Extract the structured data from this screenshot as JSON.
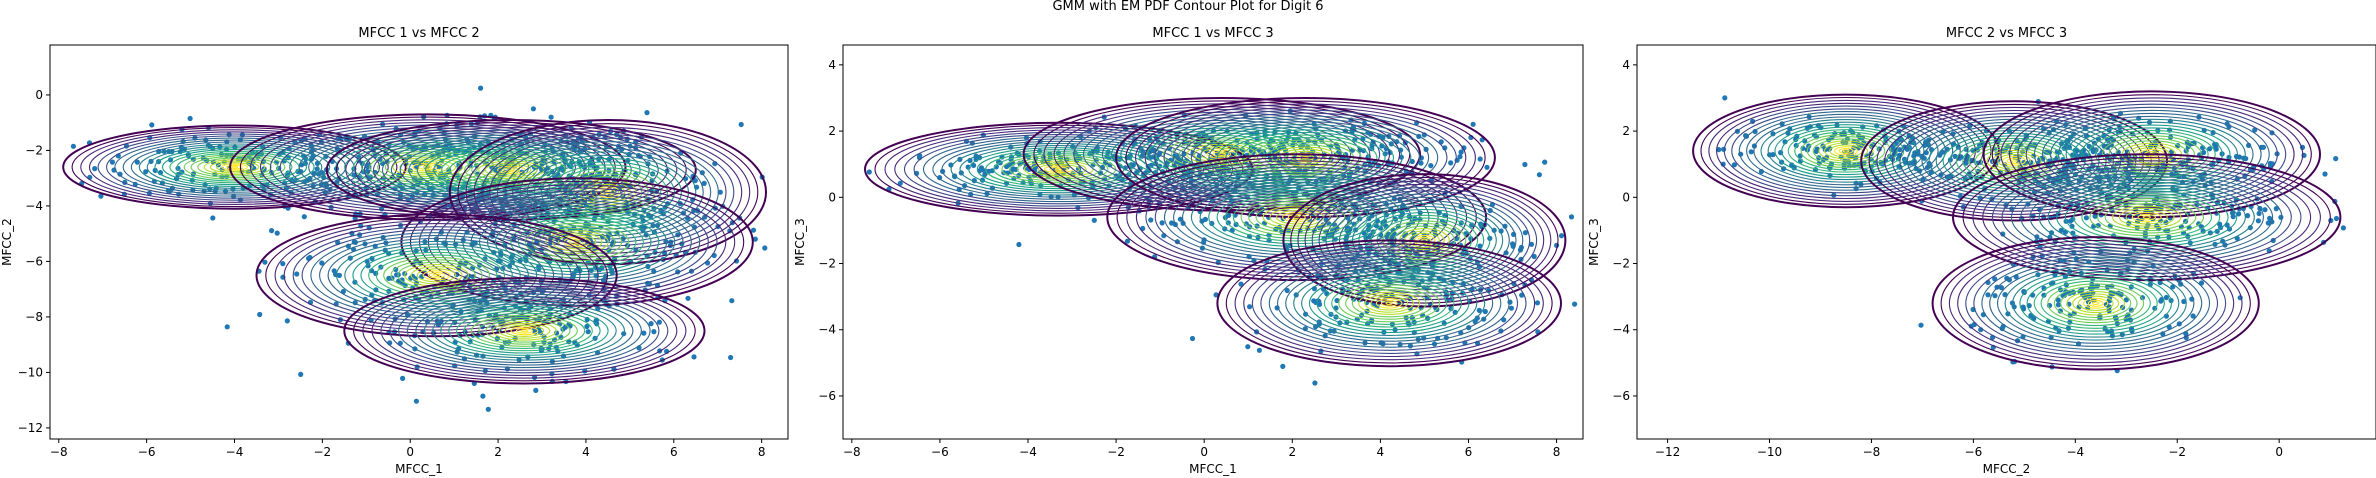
{
  "figure": {
    "title": "GMM with EM PDF Contour Plot for Digit 6"
  },
  "colors": {
    "points": "#1f77b4",
    "viridis": [
      "#440154",
      "#482878",
      "#3e4989",
      "#31688e",
      "#26828e",
      "#1f9e89",
      "#35b779",
      "#6ece58",
      "#b5de2b",
      "#fde725"
    ]
  },
  "chart_data": [
    {
      "type": "scatter",
      "title": "MFCC 1 vs MFCC 2",
      "xlabel": "MFCC_1",
      "ylabel": "MFCC_2",
      "xlim": [
        -8.2,
        8.6
      ],
      "ylim": [
        -12.4,
        1.8
      ],
      "xticks": [
        -8,
        -6,
        -4,
        -2,
        0,
        2,
        4,
        6,
        8
      ],
      "yticks": [
        0,
        -2,
        -4,
        -6,
        -8,
        -10,
        -12
      ],
      "overlay": "gmm-pdf-contours",
      "clusters": [
        {
          "center": [
            -4.0,
            -2.6
          ],
          "spread": [
            1.6,
            0.7
          ],
          "n": 160
        },
        {
          "center": [
            0.4,
            -2.6
          ],
          "spread": [
            1.6,
            0.8
          ],
          "n": 170
        },
        {
          "center": [
            2.3,
            -2.7
          ],
          "spread": [
            1.6,
            0.9
          ],
          "n": 160
        },
        {
          "center": [
            4.5,
            -3.5
          ],
          "spread": [
            1.5,
            1.2
          ],
          "n": 150
        },
        {
          "center": [
            3.8,
            -5.3
          ],
          "spread": [
            1.7,
            1.1
          ],
          "n": 150
        },
        {
          "center": [
            0.6,
            -6.5
          ],
          "spread": [
            1.8,
            1.1
          ],
          "n": 150
        },
        {
          "center": [
            2.6,
            -8.5
          ],
          "spread": [
            1.8,
            0.9
          ],
          "n": 150
        }
      ],
      "contours": [
        {
          "center": [
            -4.0,
            -2.6
          ],
          "radii": [
            3.9,
            1.5
          ]
        },
        {
          "center": [
            0.4,
            -2.6
          ],
          "radii": [
            4.5,
            1.9
          ]
        },
        {
          "center": [
            2.3,
            -2.7
          ],
          "radii": [
            4.2,
            1.8
          ]
        },
        {
          "center": [
            4.5,
            -3.5
          ],
          "radii": [
            3.6,
            2.6
          ]
        },
        {
          "center": [
            3.8,
            -5.3
          ],
          "radii": [
            4.0,
            2.3
          ]
        },
        {
          "center": [
            0.6,
            -6.5
          ],
          "radii": [
            4.1,
            2.2
          ]
        },
        {
          "center": [
            2.6,
            -8.5
          ],
          "radii": [
            4.1,
            1.9
          ]
        }
      ]
    },
    {
      "type": "scatter",
      "title": "MFCC 1 vs MFCC 3",
      "xlabel": "MFCC_1",
      "ylabel": "MFCC_3",
      "xlim": [
        -8.2,
        8.6
      ],
      "ylim": [
        -7.3,
        4.6
      ],
      "xticks": [
        -8,
        -6,
        -4,
        -2,
        0,
        2,
        4,
        6,
        8
      ],
      "yticks": [
        4,
        2,
        0,
        -2,
        -4,
        -6
      ],
      "overlay": "gmm-pdf-contours",
      "clusters": [
        {
          "center": [
            -3.3,
            0.85
          ],
          "spread": [
            1.8,
            0.35
          ],
          "n": 180
        },
        {
          "center": [
            0.4,
            1.3
          ],
          "spread": [
            1.8,
            0.45
          ],
          "n": 180
        },
        {
          "center": [
            2.3,
            1.2
          ],
          "spread": [
            1.9,
            0.5
          ],
          "n": 150
        },
        {
          "center": [
            2.1,
            -0.6
          ],
          "spread": [
            1.9,
            0.55
          ],
          "n": 160
        },
        {
          "center": [
            5.0,
            -1.3
          ],
          "spread": [
            1.4,
            0.7
          ],
          "n": 140
        },
        {
          "center": [
            4.2,
            -3.2
          ],
          "spread": [
            1.6,
            0.8
          ],
          "n": 160
        }
      ],
      "contours": [
        {
          "center": [
            -3.3,
            0.85
          ],
          "radii": [
            4.4,
            1.4
          ]
        },
        {
          "center": [
            0.4,
            1.3
          ],
          "radii": [
            4.5,
            1.7
          ]
        },
        {
          "center": [
            2.3,
            1.2
          ],
          "radii": [
            4.3,
            1.8
          ]
        },
        {
          "center": [
            2.1,
            -0.6
          ],
          "radii": [
            4.3,
            1.9
          ]
        },
        {
          "center": [
            5.0,
            -1.3
          ],
          "radii": [
            3.2,
            2.0
          ]
        },
        {
          "center": [
            4.2,
            -3.2
          ],
          "radii": [
            3.9,
            1.9
          ]
        }
      ]
    },
    {
      "type": "scatter",
      "title": "MFCC 2 vs MFCC 3",
      "xlabel": "MFCC_2",
      "ylabel": "MFCC_3",
      "xlim": [
        -12.6,
        1.9
      ],
      "ylim": [
        -7.3,
        4.6
      ],
      "xticks": [
        -12,
        -10,
        -8,
        -6,
        -4,
        -2,
        0
      ],
      "yticks": [
        4,
        2,
        0,
        -2,
        -4,
        -6
      ],
      "overlay": "gmm-pdf-contours",
      "clusters": [
        {
          "center": [
            -8.5,
            1.4
          ],
          "spread": [
            1.2,
            0.45
          ],
          "n": 170
        },
        {
          "center": [
            -5.2,
            1.1
          ],
          "spread": [
            1.3,
            0.5
          ],
          "n": 150
        },
        {
          "center": [
            -2.5,
            1.3
          ],
          "spread": [
            1.4,
            0.5
          ],
          "n": 180
        },
        {
          "center": [
            -2.6,
            -0.6
          ],
          "spread": [
            1.5,
            0.55
          ],
          "n": 160
        },
        {
          "center": [
            -3.6,
            -3.2
          ],
          "spread": [
            1.2,
            0.75
          ],
          "n": 160
        }
      ],
      "contours": [
        {
          "center": [
            -8.5,
            1.4
          ],
          "radii": [
            3.0,
            1.7
          ]
        },
        {
          "center": [
            -5.2,
            1.1
          ],
          "radii": [
            3.0,
            1.8
          ]
        },
        {
          "center": [
            -2.5,
            1.3
          ],
          "radii": [
            3.3,
            1.9
          ]
        },
        {
          "center": [
            -2.6,
            -0.6
          ],
          "radii": [
            3.8,
            1.9
          ]
        },
        {
          "center": [
            -3.6,
            -3.2
          ],
          "radii": [
            3.2,
            2.0
          ]
        }
      ]
    }
  ]
}
